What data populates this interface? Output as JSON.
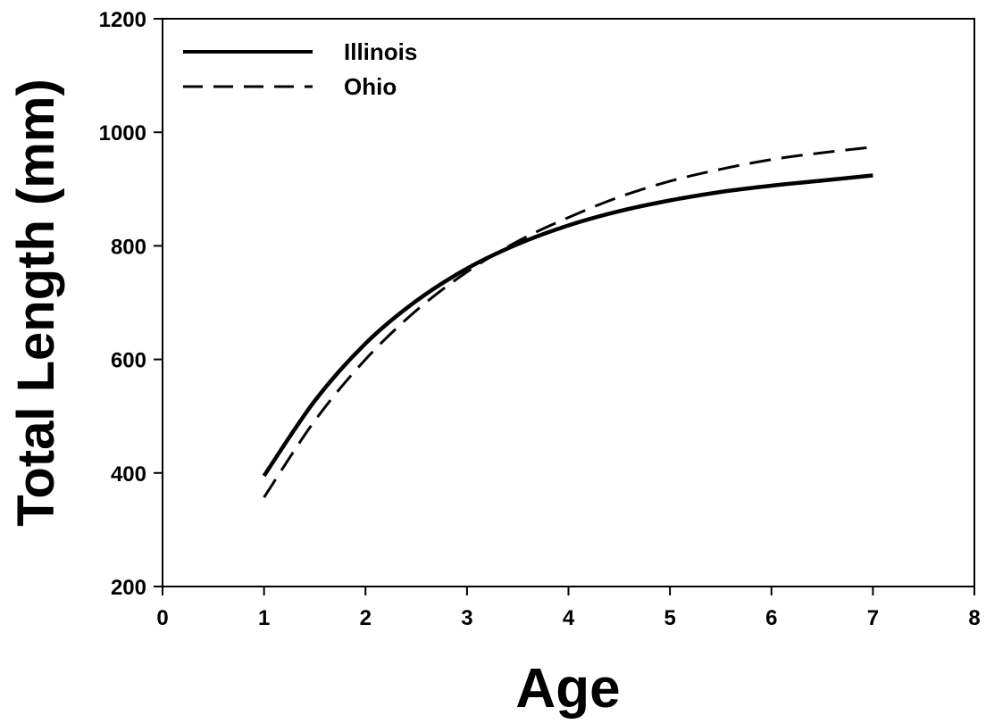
{
  "chart_data": {
    "type": "line",
    "xlabel": "Age",
    "ylabel": "Total Length (mm)",
    "xlim": [
      0,
      8
    ],
    "ylim": [
      200,
      1200
    ],
    "xticks": [
      0,
      1,
      2,
      3,
      4,
      5,
      6,
      7,
      8
    ],
    "yticks": [
      200,
      400,
      600,
      800,
      1000,
      1200
    ],
    "grid": false,
    "legend_position": "top-left",
    "series": [
      {
        "name": "Illinois",
        "style": "solid",
        "color": "#000000",
        "x": [
          1,
          1.5,
          2,
          2.5,
          3,
          3.5,
          4,
          4.5,
          5,
          5.5,
          6,
          6.5,
          7
        ],
        "y": [
          395,
          527,
          628,
          703,
          760,
          803,
          836,
          861,
          880,
          895,
          906,
          915,
          924
        ]
      },
      {
        "name": "Ohio",
        "style": "dashed",
        "color": "#000000",
        "x": [
          1,
          1.5,
          2,
          2.5,
          3,
          3.5,
          4,
          4.5,
          5,
          5.5,
          6,
          6.5,
          7
        ],
        "y": [
          357,
          492,
          600,
          686,
          754,
          808,
          850,
          886,
          914,
          935,
          952,
          964,
          974
        ]
      }
    ]
  }
}
